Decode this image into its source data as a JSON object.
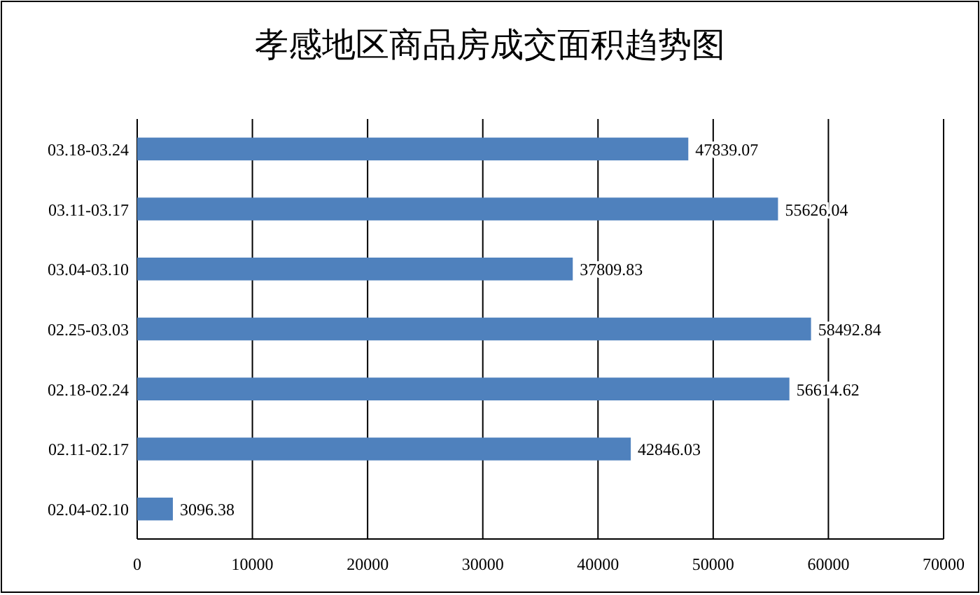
{
  "chart_data": {
    "type": "bar",
    "orientation": "horizontal",
    "title": "孝感地区商品房成交面积趋势图",
    "categories": [
      "03.18-03.24",
      "03.11-03.17",
      "03.04-03.10",
      "02.25-03.03",
      "02.18-02.24",
      "02.11-02.17",
      "02.04-02.10"
    ],
    "values": [
      47839.07,
      55626.04,
      37809.83,
      58492.84,
      56614.62,
      42846.03,
      3096.38
    ],
    "color": "#4f81bd",
    "xlim": [
      0,
      70000
    ],
    "xticks": [
      0,
      10000,
      20000,
      30000,
      40000,
      50000,
      60000,
      70000
    ],
    "grid": "x",
    "data_labels": true
  }
}
